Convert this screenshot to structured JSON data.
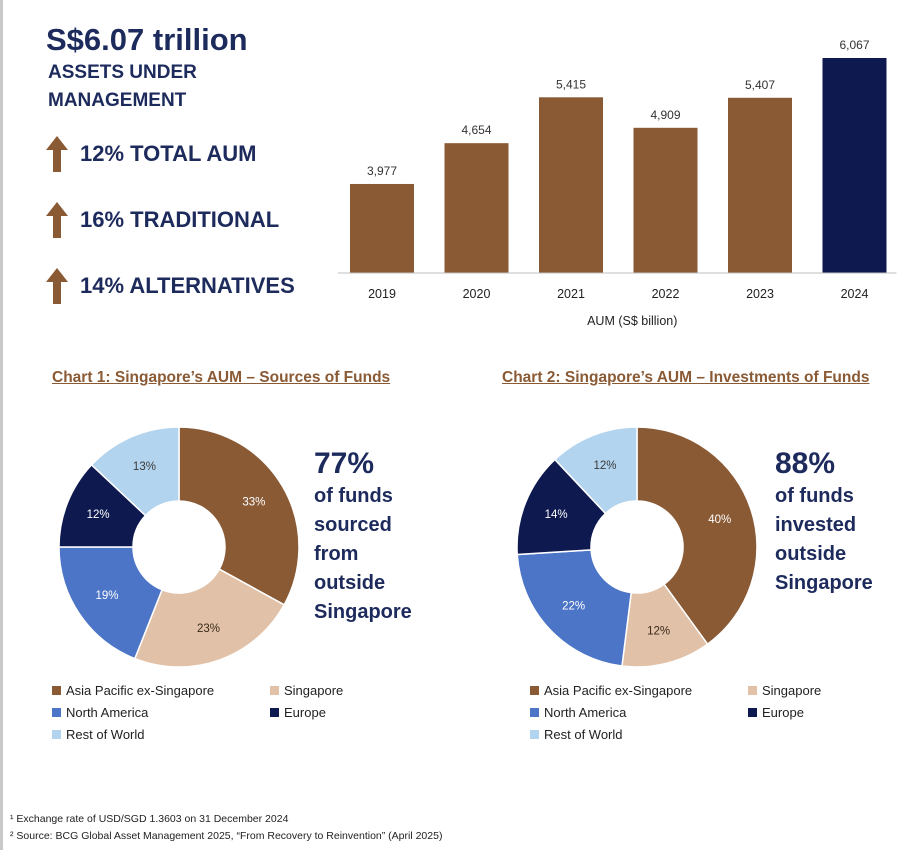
{
  "colors": {
    "brown": "#8a5a35",
    "navy": "#0e1a4f",
    "tan": "#e1c1a7",
    "blue": "#4c75c8",
    "light_blue": "#b3d4ee"
  },
  "headline": {
    "value": "S$6.07 trillion",
    "line1": "ASSETS UNDER",
    "line2": "MANAGEMENT"
  },
  "stats": [
    {
      "text": "12%  TOTAL AUM"
    },
    {
      "text": "16%  TRADITIONAL"
    },
    {
      "text": "14%  ALTERNATIVES"
    }
  ],
  "chart_data": [
    {
      "type": "bar",
      "title": "",
      "categories": [
        "2019",
        "2020",
        "2021",
        "2022",
        "2023",
        "2024"
      ],
      "values": [
        3977,
        4654,
        5415,
        4909,
        5407,
        6067
      ],
      "value_labels": [
        "3,977",
        "4,654",
        "5,415",
        "4,909",
        "5,407",
        "6,067"
      ],
      "highlight_index": 5,
      "xlabel": "AUM (S$ billion)",
      "ylabel": "",
      "ylim": [
        2500,
        6067
      ]
    },
    {
      "type": "pie",
      "title": "Chart 1: Singapore’s AUM – Sources of Funds",
      "categories": [
        "Asia Pacific ex-Singapore",
        "Singapore",
        "North America",
        "Europe",
        "Rest of World"
      ],
      "values": [
        33,
        23,
        19,
        12,
        13
      ],
      "value_labels": [
        "33%",
        "23%",
        "19%",
        "12%",
        "13%"
      ],
      "callout_big": "77%",
      "callout_lines": [
        "of funds",
        "sourced",
        "from",
        "outside",
        "Singapore"
      ]
    },
    {
      "type": "pie",
      "title": "Chart 2: Singapore’s AUM – Investments of Funds",
      "categories": [
        "Asia Pacific ex-Singapore",
        "Singapore",
        "North America",
        "Europe",
        "Rest of World"
      ],
      "values": [
        40,
        12,
        22,
        14,
        12
      ],
      "value_labels": [
        "40%",
        "12%",
        "22%",
        "14%",
        "12%"
      ],
      "callout_big": "88%",
      "callout_lines": [
        "of funds",
        "invested",
        "outside",
        "Singapore"
      ]
    }
  ],
  "footnotes": {
    "one": "¹ Exchange rate of USD/SGD 1.3603 on 31 December 2024",
    "two": "² Source: BCG Global Asset Management 2025, “From Recovery to Reinvention” (April 2025)"
  }
}
